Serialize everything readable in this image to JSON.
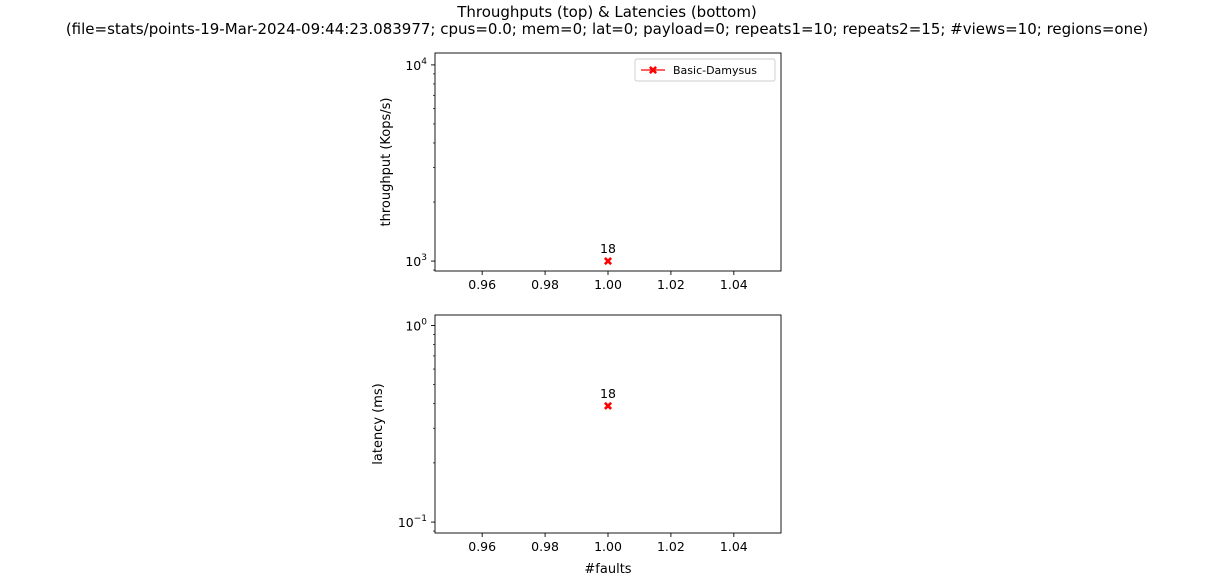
{
  "figure": {
    "title_line1": "Throughputs (top) & Latencies (bottom)",
    "title_line2": "(file=stats/points-19-Mar-2024-09:44:23.083977; cpus=0.0; mem=0; lat=0; payload=0; repeats1=10; repeats2=15; #views=10; regions=one)"
  },
  "chart_data": [
    {
      "type": "line",
      "panel": "top",
      "ylabel": "throughput (Kops/s)",
      "xlabel": "",
      "yscale": "log",
      "xlim": [
        0.945,
        1.055
      ],
      "ylim": [
        890,
        11500
      ],
      "xticks": [
        0.96,
        0.98,
        1.0,
        1.02,
        1.04
      ],
      "xtick_labels": [
        "0.96",
        "0.98",
        "1.00",
        "1.02",
        "1.04"
      ],
      "yticks": [
        1000,
        10000
      ],
      "ytick_labels": [
        {
          "base": "10",
          "exp": "3"
        },
        {
          "base": "10",
          "exp": "4"
        }
      ],
      "legend_position": "top-right",
      "series": [
        {
          "name": "Basic-Damysus",
          "color": "#ff0000",
          "marker": "X",
          "x": [
            1.0
          ],
          "y": [
            1000
          ],
          "annotations": [
            "18"
          ]
        }
      ]
    },
    {
      "type": "line",
      "panel": "bottom",
      "ylabel": "latency (ms)",
      "xlabel": "#faults",
      "yscale": "log",
      "xlim": [
        0.945,
        1.055
      ],
      "ylim": [
        0.088,
        1.13
      ],
      "xticks": [
        0.96,
        0.98,
        1.0,
        1.02,
        1.04
      ],
      "xtick_labels": [
        "0.96",
        "0.98",
        "1.00",
        "1.02",
        "1.04"
      ],
      "yticks": [
        0.1,
        1
      ],
      "ytick_labels": [
        {
          "base": "10",
          "exp": "−1"
        },
        {
          "base": "10",
          "exp": "0"
        }
      ],
      "series": [
        {
          "name": "Basic-Damysus",
          "color": "#ff0000",
          "marker": "X",
          "x": [
            1.0
          ],
          "y": [
            0.39
          ],
          "annotations": [
            "18"
          ]
        }
      ]
    }
  ]
}
